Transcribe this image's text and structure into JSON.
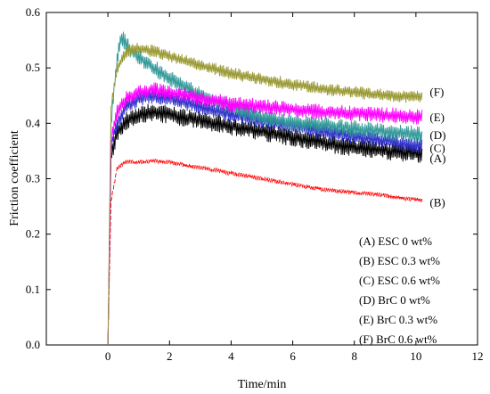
{
  "chart_data": {
    "type": "line",
    "xlabel": "Time/min",
    "ylabel": "Friction coefficient",
    "xlim": [
      -2,
      12
    ],
    "ylim": [
      0.0,
      0.6
    ],
    "xticks": [
      0,
      2,
      4,
      6,
      8,
      10,
      12
    ],
    "yticks": [
      0.0,
      0.1,
      0.2,
      0.3,
      0.4,
      0.5,
      0.6
    ],
    "xtick_labels": [
      "0",
      "2",
      "4",
      "6",
      "8",
      "10",
      "12"
    ],
    "ytick_labels": [
      "0.0",
      "0.1",
      "0.2",
      "0.3",
      "0.4",
      "0.5",
      "0.6"
    ],
    "grid": false,
    "legend_position": "bottom-right",
    "legend": [
      "(A) ESC 0 wt%",
      "(B) ESC 0.3 wt%",
      "(C) ESC 0.6 wt%",
      "(D) BrC 0 wt%",
      "(E) BrC 0.3 wt%",
      "(F) BrC 0.6 wt%"
    ],
    "series": [
      {
        "name": "(A) ESC 0 wt%",
        "label": "(A)",
        "color": "#000000",
        "noise": 0.013,
        "x": [
          0,
          0.1,
          0.3,
          0.6,
          1,
          1.5,
          2,
          3,
          4,
          5,
          6,
          7,
          8,
          9,
          10,
          10.2
        ],
        "y": [
          0.0,
          0.34,
          0.385,
          0.405,
          0.415,
          0.42,
          0.415,
          0.405,
          0.395,
          0.385,
          0.375,
          0.365,
          0.355,
          0.35,
          0.345,
          0.345
        ]
      },
      {
        "name": "(B) ESC 0.3 wt%",
        "label": "(B)",
        "color": "#ff0000",
        "noise": 0.003,
        "x": [
          0,
          0.1,
          0.3,
          0.6,
          1,
          1.5,
          2,
          3,
          4,
          5,
          6,
          7,
          8,
          9,
          10,
          10.2
        ],
        "y": [
          0.0,
          0.26,
          0.32,
          0.33,
          0.33,
          0.332,
          0.33,
          0.32,
          0.31,
          0.3,
          0.29,
          0.28,
          0.275,
          0.27,
          0.262,
          0.26
        ]
      },
      {
        "name": "(C) ESC 0.6 wt%",
        "label": "(C)",
        "color": "#3333cc",
        "noise": 0.011,
        "x": [
          0,
          0.1,
          0.3,
          0.6,
          1,
          1.5,
          2,
          3,
          4,
          5,
          6,
          7,
          8,
          9,
          10,
          10.2
        ],
        "y": [
          0.0,
          0.36,
          0.4,
          0.43,
          0.445,
          0.45,
          0.445,
          0.43,
          0.415,
          0.405,
          0.395,
          0.385,
          0.375,
          0.368,
          0.36,
          0.36
        ]
      },
      {
        "name": "(D) BrC 0 wt%",
        "label": "(D)",
        "color": "#339999",
        "noise": 0.012,
        "x": [
          0,
          0.1,
          0.3,
          0.45,
          0.7,
          1,
          1.5,
          2,
          3,
          4,
          5,
          6,
          7,
          8,
          9,
          10,
          10.2
        ],
        "y": [
          0.0,
          0.4,
          0.52,
          0.555,
          0.535,
          0.52,
          0.5,
          0.48,
          0.45,
          0.43,
          0.41,
          0.4,
          0.395,
          0.39,
          0.385,
          0.38,
          0.378
        ]
      },
      {
        "name": "(E) BrC 0.3 wt%",
        "label": "(E)",
        "color": "#ff00ff",
        "noise": 0.011,
        "x": [
          0,
          0.1,
          0.3,
          0.6,
          1,
          1.5,
          2,
          3,
          4,
          5,
          6,
          7,
          8,
          9,
          10,
          10.2
        ],
        "y": [
          0.0,
          0.37,
          0.42,
          0.445,
          0.455,
          0.46,
          0.455,
          0.445,
          0.435,
          0.43,
          0.425,
          0.42,
          0.418,
          0.415,
          0.412,
          0.412
        ]
      },
      {
        "name": "(F) BrC 0.6 wt%",
        "label": "(F)",
        "color": "#999933",
        "noise": 0.009,
        "x": [
          0,
          0.1,
          0.3,
          0.6,
          1,
          1.5,
          2,
          3,
          4,
          5,
          6,
          7,
          8,
          9,
          10,
          10.2
        ],
        "y": [
          0.0,
          0.43,
          0.5,
          0.53,
          0.535,
          0.53,
          0.52,
          0.505,
          0.49,
          0.48,
          0.47,
          0.462,
          0.456,
          0.45,
          0.448,
          0.448
        ]
      }
    ]
  }
}
